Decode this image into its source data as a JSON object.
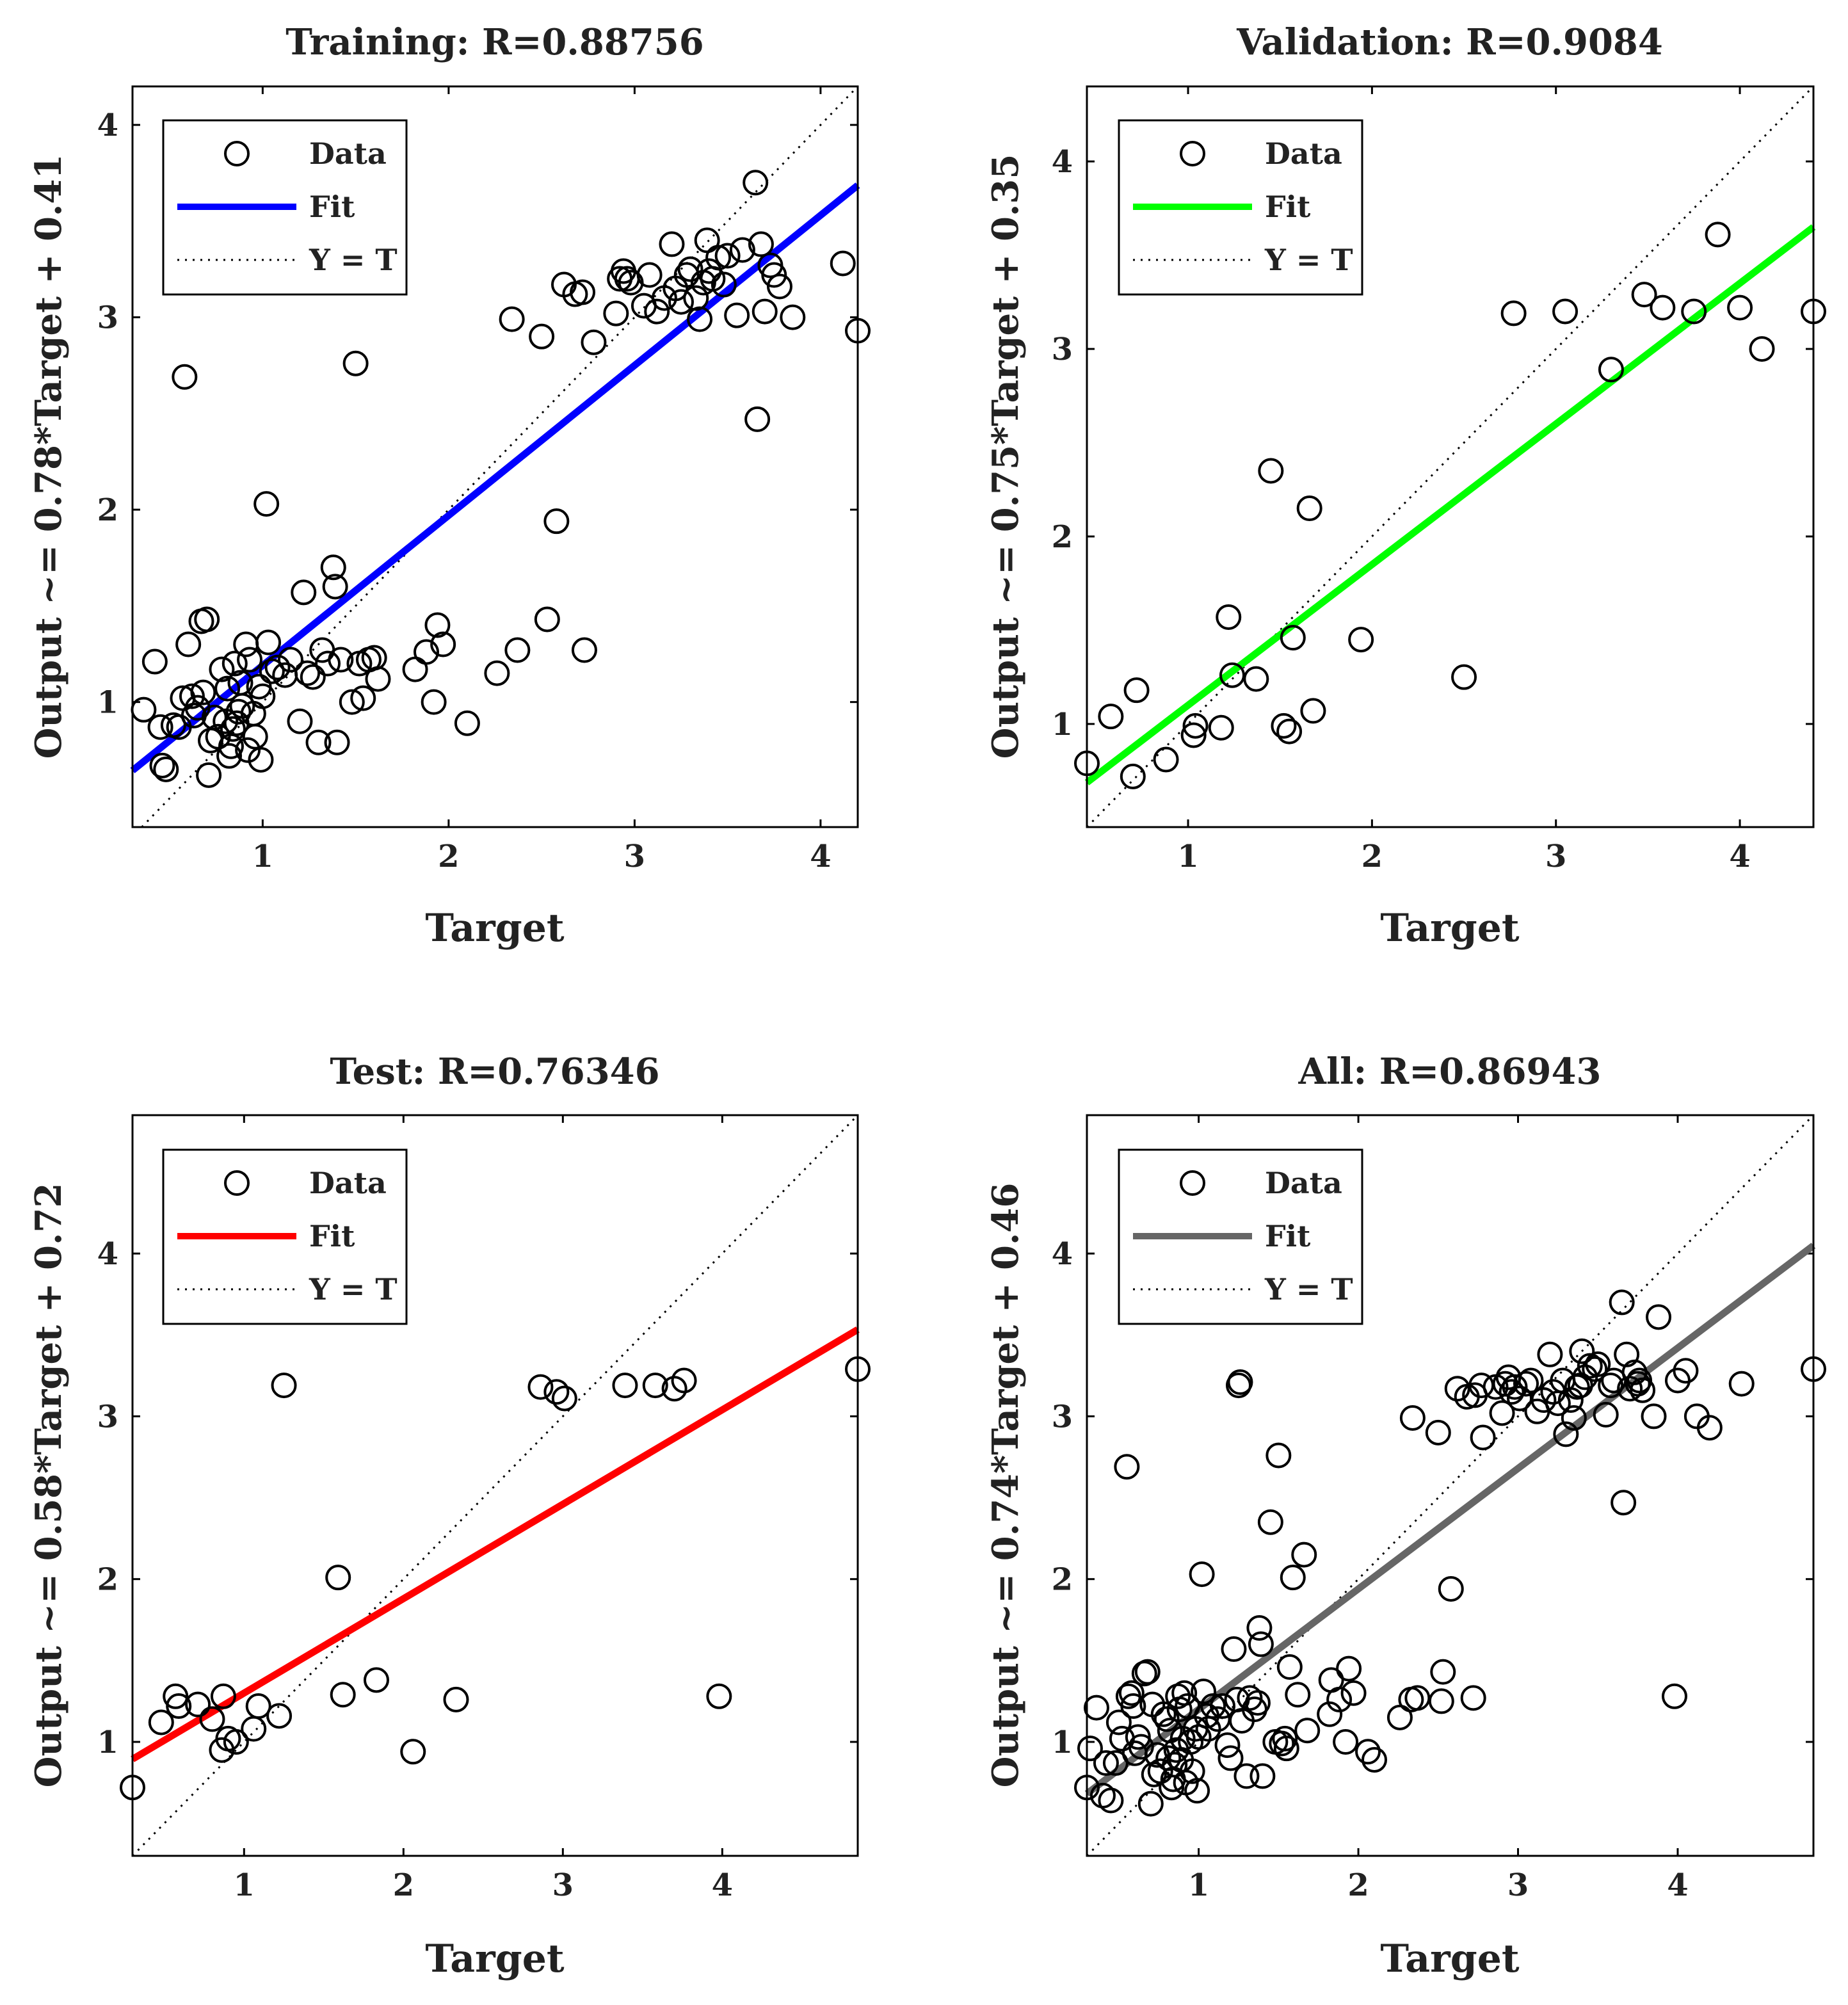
{
  "chart_data": [
    {
      "type": "scatter",
      "title": "Training: R=0.88756",
      "xlabel": "Target",
      "ylabel": "Output ~= 0.78*Target + 0.41",
      "xlim": [
        0.3,
        4.2
      ],
      "ylim": [
        0.35,
        4.2
      ],
      "xticks": [
        1,
        2,
        3,
        4
      ],
      "yticks": [
        1,
        2,
        3,
        4
      ],
      "fit": {
        "slope": 0.78,
        "intercept": 0.41,
        "color": "#0000ff"
      },
      "legend": {
        "data": "Data",
        "fit": "Fit",
        "identity": "Y = T"
      },
      "points": [
        [
          0.36,
          0.96
        ],
        [
          0.42,
          1.21
        ],
        [
          0.45,
          0.87
        ],
        [
          0.46,
          0.67
        ],
        [
          0.48,
          0.65
        ],
        [
          0.52,
          0.88
        ],
        [
          0.55,
          0.87
        ],
        [
          0.57,
          1.02
        ],
        [
          0.58,
          2.69
        ],
        [
          0.6,
          1.3
        ],
        [
          0.62,
          1.03
        ],
        [
          0.63,
          0.93
        ],
        [
          0.65,
          0.97
        ],
        [
          0.67,
          1.42
        ],
        [
          0.68,
          1.05
        ],
        [
          0.7,
          1.43
        ],
        [
          0.71,
          0.62
        ],
        [
          0.72,
          0.8
        ],
        [
          0.74,
          0.92
        ],
        [
          0.76,
          0.82
        ],
        [
          0.78,
          1.17
        ],
        [
          0.8,
          0.9
        ],
        [
          0.81,
          1.07
        ],
        [
          0.82,
          0.72
        ],
        [
          0.83,
          0.77
        ],
        [
          0.84,
          0.86
        ],
        [
          0.85,
          1.2
        ],
        [
          0.86,
          0.89
        ],
        [
          0.87,
          0.95
        ],
        [
          0.88,
          1.1
        ],
        [
          0.89,
          0.98
        ],
        [
          0.91,
          1.3
        ],
        [
          0.92,
          0.75
        ],
        [
          0.93,
          1.22
        ],
        [
          0.95,
          0.94
        ],
        [
          0.96,
          0.82
        ],
        [
          0.98,
          1.08
        ],
        [
          0.99,
          0.7
        ],
        [
          1.0,
          1.03
        ],
        [
          1.02,
          2.03
        ],
        [
          1.03,
          1.31
        ],
        [
          1.05,
          1.16
        ],
        [
          1.08,
          1.18
        ],
        [
          1.12,
          1.14
        ],
        [
          1.15,
          1.22
        ],
        [
          1.2,
          0.9
        ],
        [
          1.22,
          1.57
        ],
        [
          1.24,
          1.15
        ],
        [
          1.27,
          1.13
        ],
        [
          1.3,
          0.79
        ],
        [
          1.32,
          1.27
        ],
        [
          1.35,
          1.2
        ],
        [
          1.38,
          1.7
        ],
        [
          1.39,
          1.6
        ],
        [
          1.4,
          0.79
        ],
        [
          1.42,
          1.22
        ],
        [
          1.48,
          1.0
        ],
        [
          1.5,
          2.76
        ],
        [
          1.52,
          1.2
        ],
        [
          1.54,
          1.02
        ],
        [
          1.57,
          1.22
        ],
        [
          1.6,
          1.23
        ],
        [
          1.62,
          1.12
        ],
        [
          1.82,
          1.17
        ],
        [
          1.88,
          1.26
        ],
        [
          1.92,
          1.0
        ],
        [
          1.94,
          1.4
        ],
        [
          1.97,
          1.3
        ],
        [
          2.1,
          0.89
        ],
        [
          2.26,
          1.15
        ],
        [
          2.34,
          2.99
        ],
        [
          2.37,
          1.27
        ],
        [
          2.5,
          2.9
        ],
        [
          2.53,
          1.43
        ],
        [
          2.58,
          1.94
        ],
        [
          2.62,
          3.17
        ],
        [
          2.68,
          3.12
        ],
        [
          2.72,
          3.13
        ],
        [
          2.73,
          1.27
        ],
        [
          2.78,
          2.87
        ],
        [
          2.9,
          3.02
        ],
        [
          2.92,
          3.2
        ],
        [
          2.94,
          3.24
        ],
        [
          2.96,
          3.2
        ],
        [
          2.98,
          3.18
        ],
        [
          3.05,
          3.06
        ],
        [
          3.08,
          3.22
        ],
        [
          3.12,
          3.03
        ],
        [
          3.16,
          3.1
        ],
        [
          3.2,
          3.38
        ],
        [
          3.22,
          3.15
        ],
        [
          3.25,
          3.08
        ],
        [
          3.28,
          3.22
        ],
        [
          3.3,
          3.25
        ],
        [
          3.33,
          3.1
        ],
        [
          3.35,
          2.99
        ],
        [
          3.37,
          3.18
        ],
        [
          3.39,
          3.4
        ],
        [
          3.4,
          3.24
        ],
        [
          3.42,
          3.2
        ],
        [
          3.45,
          3.31
        ],
        [
          3.48,
          3.17
        ],
        [
          3.5,
          3.32
        ],
        [
          3.55,
          3.01
        ],
        [
          3.58,
          3.35
        ],
        [
          3.65,
          3.7
        ],
        [
          3.66,
          2.47
        ],
        [
          3.68,
          3.38
        ],
        [
          3.7,
          3.03
        ],
        [
          3.73,
          3.27
        ],
        [
          3.75,
          3.22
        ],
        [
          3.78,
          3.16
        ],
        [
          3.85,
          3.0
        ],
        [
          4.12,
          3.28
        ],
        [
          4.2,
          2.93
        ]
      ]
    },
    {
      "type": "scatter",
      "title": "Validation: R=0.9084",
      "xlabel": "Target",
      "ylabel": "Output ~= 0.75*Target + 0.35",
      "xlim": [
        0.45,
        4.4
      ],
      "ylim": [
        0.45,
        4.4
      ],
      "xticks": [
        1,
        2,
        3,
        4
      ],
      "yticks": [
        1,
        2,
        3,
        4
      ],
      "fit": {
        "slope": 0.75,
        "intercept": 0.35,
        "color": "#00ff00"
      },
      "legend": {
        "data": "Data",
        "fit": "Fit",
        "identity": "Y = T"
      },
      "points": [
        [
          0.45,
          0.79
        ],
        [
          0.58,
          1.04
        ],
        [
          0.7,
          0.72
        ],
        [
          0.72,
          1.18
        ],
        [
          0.88,
          0.81
        ],
        [
          1.03,
          0.94
        ],
        [
          1.04,
          0.99
        ],
        [
          1.18,
          0.98
        ],
        [
          1.22,
          1.57
        ],
        [
          1.24,
          1.26
        ],
        [
          1.37,
          1.24
        ],
        [
          1.45,
          2.35
        ],
        [
          1.52,
          0.99
        ],
        [
          1.55,
          0.96
        ],
        [
          1.57,
          1.46
        ],
        [
          1.66,
          2.15
        ],
        [
          1.68,
          1.07
        ],
        [
          1.94,
          1.45
        ],
        [
          2.5,
          1.25
        ],
        [
          2.77,
          3.19
        ],
        [
          3.05,
          3.2
        ],
        [
          3.3,
          2.89
        ],
        [
          3.48,
          3.29
        ],
        [
          3.58,
          3.22
        ],
        [
          3.75,
          3.2
        ],
        [
          3.88,
          3.61
        ],
        [
          4.0,
          3.22
        ],
        [
          4.12,
          3.0
        ],
        [
          4.4,
          3.2
        ]
      ]
    },
    {
      "type": "scatter",
      "title": "Test: R=0.76346",
      "xlabel": "Target",
      "ylabel": "Output ~= 0.58*Target + 0.72",
      "xlim": [
        0.3,
        4.85
      ],
      "ylim": [
        0.3,
        4.85
      ],
      "xticks": [
        1,
        2,
        3,
        4
      ],
      "yticks": [
        1,
        2,
        3,
        4
      ],
      "fit": {
        "slope": 0.58,
        "intercept": 0.72,
        "color": "#ff0000"
      },
      "legend": {
        "data": "Data",
        "fit": "Fit",
        "identity": "Y = T"
      },
      "points": [
        [
          0.3,
          0.72
        ],
        [
          0.48,
          1.12
        ],
        [
          0.57,
          1.28
        ],
        [
          0.59,
          1.22
        ],
        [
          0.71,
          1.23
        ],
        [
          0.8,
          1.14
        ],
        [
          0.86,
          0.95
        ],
        [
          0.87,
          1.28
        ],
        [
          0.9,
          1.02
        ],
        [
          0.95,
          1.0
        ],
        [
          1.06,
          1.08
        ],
        [
          1.09,
          1.22
        ],
        [
          1.22,
          1.16
        ],
        [
          1.25,
          3.19
        ],
        [
          1.59,
          2.01
        ],
        [
          1.62,
          1.29
        ],
        [
          1.83,
          1.38
        ],
        [
          2.06,
          0.94
        ],
        [
          2.33,
          1.26
        ],
        [
          2.86,
          3.18
        ],
        [
          2.96,
          3.15
        ],
        [
          3.01,
          3.11
        ],
        [
          3.39,
          3.19
        ],
        [
          3.58,
          3.19
        ],
        [
          3.7,
          3.17
        ],
        [
          3.76,
          3.22
        ],
        [
          3.98,
          1.28
        ],
        [
          4.85,
          3.29
        ]
      ]
    },
    {
      "type": "scatter",
      "title": "All: R=0.86943",
      "xlabel": "Target",
      "ylabel": "Output ~= 0.74*Target + 0.46",
      "xlim": [
        0.3,
        4.85
      ],
      "ylim": [
        0.3,
        4.85
      ],
      "xticks": [
        1,
        2,
        3,
        4
      ],
      "yticks": [
        1,
        2,
        3,
        4
      ],
      "fit": {
        "slope": 0.74,
        "intercept": 0.46,
        "color": "#666666"
      },
      "legend": {
        "data": "Data",
        "fit": "Fit",
        "identity": "Y = T"
      },
      "points": [
        [
          0.3,
          0.72
        ],
        [
          0.32,
          0.96
        ],
        [
          0.36,
          1.21
        ],
        [
          0.4,
          0.67
        ],
        [
          0.42,
          0.87
        ],
        [
          0.45,
          0.64
        ],
        [
          0.48,
          0.87
        ],
        [
          0.5,
          1.12
        ],
        [
          0.52,
          1.02
        ],
        [
          0.55,
          2.69
        ],
        [
          0.56,
          1.28
        ],
        [
          0.58,
          1.3
        ],
        [
          0.59,
          1.22
        ],
        [
          0.6,
          0.93
        ],
        [
          0.62,
          1.03
        ],
        [
          0.64,
          0.97
        ],
        [
          0.66,
          1.42
        ],
        [
          0.68,
          1.43
        ],
        [
          0.7,
          0.62
        ],
        [
          0.71,
          1.23
        ],
        [
          0.72,
          0.8
        ],
        [
          0.74,
          0.92
        ],
        [
          0.76,
          0.82
        ],
        [
          0.78,
          1.17
        ],
        [
          0.8,
          1.14
        ],
        [
          0.81,
          0.9
        ],
        [
          0.82,
          1.07
        ],
        [
          0.83,
          0.72
        ],
        [
          0.84,
          0.77
        ],
        [
          0.85,
          0.86
        ],
        [
          0.86,
          0.95
        ],
        [
          0.87,
          1.28
        ],
        [
          0.88,
          1.2
        ],
        [
          0.89,
          0.89
        ],
        [
          0.9,
          1.02
        ],
        [
          0.91,
          1.3
        ],
        [
          0.92,
          0.75
        ],
        [
          0.93,
          1.22
        ],
        [
          0.95,
          1.0
        ],
        [
          0.96,
          0.82
        ],
        [
          0.98,
          1.08
        ],
        [
          0.99,
          0.7
        ],
        [
          1.0,
          1.03
        ],
        [
          1.02,
          2.03
        ],
        [
          1.03,
          1.31
        ],
        [
          1.05,
          1.16
        ],
        [
          1.06,
          1.08
        ],
        [
          1.09,
          1.22
        ],
        [
          1.12,
          1.14
        ],
        [
          1.15,
          1.22
        ],
        [
          1.18,
          0.98
        ],
        [
          1.2,
          0.9
        ],
        [
          1.22,
          1.57
        ],
        [
          1.24,
          1.26
        ],
        [
          1.25,
          3.19
        ],
        [
          1.26,
          3.21
        ],
        [
          1.27,
          1.13
        ],
        [
          1.3,
          0.79
        ],
        [
          1.32,
          1.27
        ],
        [
          1.35,
          1.2
        ],
        [
          1.37,
          1.24
        ],
        [
          1.38,
          1.7
        ],
        [
          1.39,
          1.6
        ],
        [
          1.4,
          0.79
        ],
        [
          1.45,
          2.35
        ],
        [
          1.48,
          1.0
        ],
        [
          1.5,
          2.76
        ],
        [
          1.52,
          0.99
        ],
        [
          1.54,
          1.02
        ],
        [
          1.55,
          0.96
        ],
        [
          1.57,
          1.46
        ],
        [
          1.59,
          2.01
        ],
        [
          1.62,
          1.29
        ],
        [
          1.66,
          2.15
        ],
        [
          1.68,
          1.07
        ],
        [
          1.82,
          1.17
        ],
        [
          1.83,
          1.38
        ],
        [
          1.88,
          1.26
        ],
        [
          1.92,
          1.0
        ],
        [
          1.94,
          1.45
        ],
        [
          1.97,
          1.3
        ],
        [
          2.06,
          0.94
        ],
        [
          2.1,
          0.89
        ],
        [
          2.26,
          1.15
        ],
        [
          2.33,
          1.26
        ],
        [
          2.34,
          2.99
        ],
        [
          2.37,
          1.27
        ],
        [
          2.5,
          2.9
        ],
        [
          2.52,
          1.25
        ],
        [
          2.53,
          1.43
        ],
        [
          2.58,
          1.94
        ],
        [
          2.62,
          3.17
        ],
        [
          2.68,
          3.12
        ],
        [
          2.72,
          1.27
        ],
        [
          2.73,
          3.13
        ],
        [
          2.77,
          3.19
        ],
        [
          2.78,
          2.87
        ],
        [
          2.86,
          3.18
        ],
        [
          2.9,
          3.02
        ],
        [
          2.92,
          3.2
        ],
        [
          2.94,
          3.24
        ],
        [
          2.96,
          3.15
        ],
        [
          2.98,
          3.18
        ],
        [
          3.01,
          3.11
        ],
        [
          3.05,
          3.2
        ],
        [
          3.08,
          3.22
        ],
        [
          3.12,
          3.03
        ],
        [
          3.16,
          3.1
        ],
        [
          3.2,
          3.38
        ],
        [
          3.22,
          3.15
        ],
        [
          3.25,
          3.08
        ],
        [
          3.28,
          3.22
        ],
        [
          3.3,
          2.89
        ],
        [
          3.33,
          3.1
        ],
        [
          3.35,
          2.99
        ],
        [
          3.37,
          3.18
        ],
        [
          3.39,
          3.19
        ],
        [
          3.4,
          3.4
        ],
        [
          3.42,
          3.24
        ],
        [
          3.45,
          3.31
        ],
        [
          3.48,
          3.29
        ],
        [
          3.5,
          3.32
        ],
        [
          3.55,
          3.01
        ],
        [
          3.58,
          3.19
        ],
        [
          3.6,
          3.22
        ],
        [
          3.65,
          3.7
        ],
        [
          3.66,
          2.47
        ],
        [
          3.68,
          3.38
        ],
        [
          3.7,
          3.17
        ],
        [
          3.73,
          3.27
        ],
        [
          3.75,
          3.2
        ],
        [
          3.76,
          3.22
        ],
        [
          3.78,
          3.16
        ],
        [
          3.85,
          3.0
        ],
        [
          3.88,
          3.61
        ],
        [
          3.98,
          1.28
        ],
        [
          4.0,
          3.22
        ],
        [
          4.05,
          3.28
        ],
        [
          4.12,
          3.0
        ],
        [
          4.2,
          2.93
        ],
        [
          4.4,
          3.2
        ],
        [
          4.85,
          3.29
        ]
      ]
    }
  ]
}
